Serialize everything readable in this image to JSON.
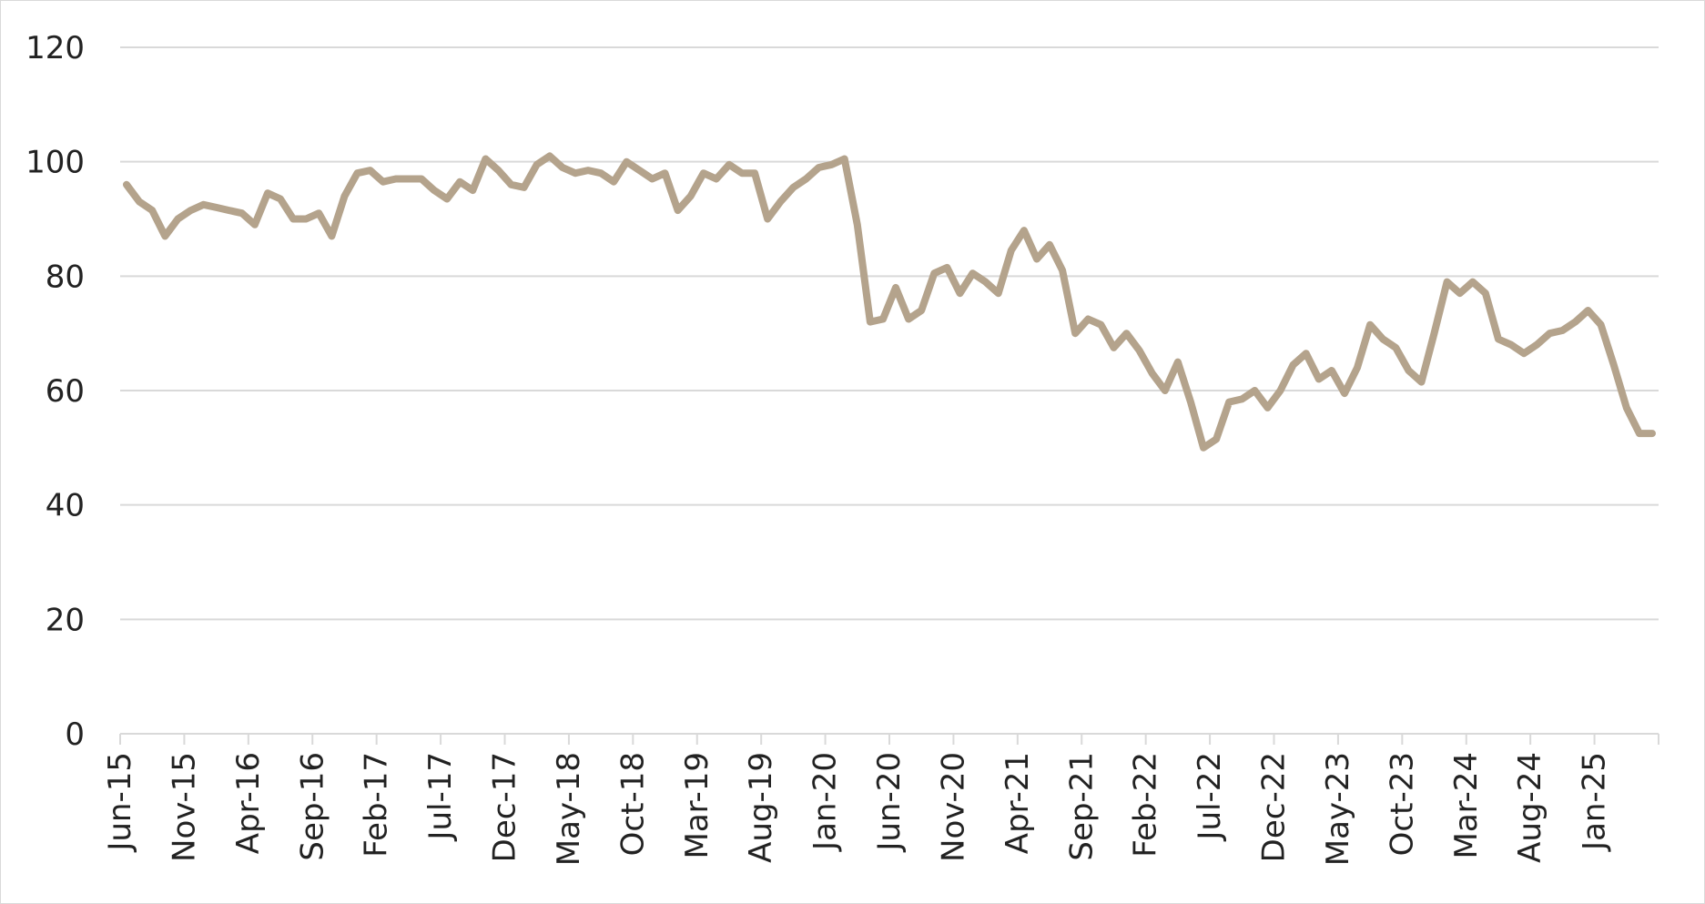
{
  "chart_data": {
    "type": "line",
    "title": "",
    "xlabel": "",
    "ylabel": "",
    "ylim": [
      0,
      120
    ],
    "yticks": [
      0,
      20,
      40,
      60,
      80,
      100,
      120
    ],
    "grid": true,
    "legend": "none",
    "x_tick_labels": [
      "Jun-15",
      "Nov-15",
      "Apr-16",
      "Sep-16",
      "Feb-17",
      "Jul-17",
      "Dec-17",
      "May-18",
      "Oct-18",
      "Mar-19",
      "Aug-19",
      "Jan-20",
      "Jun-20",
      "Nov-20",
      "Apr-21",
      "Sep-21",
      "Feb-22",
      "Jul-22",
      "Dec-22",
      "May-23",
      "Oct-23",
      "Mar-24",
      "Aug-24",
      "Jan-25"
    ],
    "x_start": "Jun-15",
    "x_end": "Jun-25",
    "series": [
      {
        "color": "#b4a38c",
        "values": [
          96,
          93,
          91.5,
          87,
          90,
          91.5,
          92.5,
          92,
          91.5,
          91,
          89,
          94.5,
          93.5,
          90,
          90,
          91,
          87,
          94,
          98,
          98.5,
          96.5,
          97,
          97,
          97,
          95,
          93.5,
          96.5,
          95,
          100.5,
          98.5,
          96,
          95.5,
          99.5,
          101,
          99,
          98,
          98.5,
          98,
          96.5,
          100,
          98.5,
          97,
          98,
          91.5,
          94,
          98,
          97,
          99.5,
          98,
          98,
          90,
          93,
          95.5,
          97,
          99,
          99.5,
          100.5,
          89,
          72,
          72.5,
          78,
          72.5,
          74,
          80.5,
          81.5,
          77,
          80.5,
          79,
          77,
          84.5,
          88,
          83,
          85.5,
          81,
          70,
          72.5,
          71.5,
          67.5,
          70,
          67,
          63,
          60,
          65,
          58,
          50,
          51.5,
          58,
          58.5,
          60,
          57,
          60,
          64.5,
          66.5,
          62,
          63.5,
          59.5,
          64,
          71.5,
          69,
          67.5,
          63.5,
          61.5,
          70,
          79,
          77,
          79,
          77,
          69,
          68,
          66.5,
          68,
          70,
          70.5,
          72,
          74,
          71.5,
          64.5,
          57,
          52.5,
          52.5
        ]
      }
    ]
  }
}
